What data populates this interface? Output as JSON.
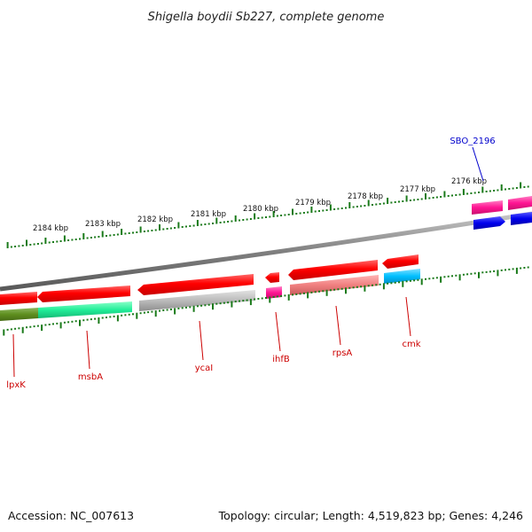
{
  "title": "Shigella boydii Sb227, complete genome",
  "footer": {
    "accession": "Accession: NC_007613",
    "summary": "Topology: circular; Length: 4,519,823 bp; Genes: 4,246"
  },
  "colors": {
    "gene_label_red": "#cc0000",
    "gene_label_blue": "#0000cc",
    "tick_green": "#1a7a1a",
    "backbone": "#808080"
  },
  "ruler_labels": [
    {
      "text": "2184 kbp"
    },
    {
      "text": "2183 kbp"
    },
    {
      "text": "2182 kbp"
    },
    {
      "text": "2181 kbp"
    },
    {
      "text": "2180 kbp"
    },
    {
      "text": "2179 kbp"
    },
    {
      "text": "2178 kbp"
    },
    {
      "text": "2177 kbp"
    },
    {
      "text": "2176 kbp"
    }
  ],
  "gene_labels": [
    {
      "name": "lpxK",
      "color": "#cc0000"
    },
    {
      "name": "msbA",
      "color": "#cc0000"
    },
    {
      "name": "ycaI",
      "color": "#cc0000"
    },
    {
      "name": "ihfB",
      "color": "#cc0000"
    },
    {
      "name": "rpsA",
      "color": "#cc0000"
    },
    {
      "name": "cmk",
      "color": "#cc0000"
    },
    {
      "name": "SBO_2196",
      "color": "#0000cc"
    }
  ],
  "features": [
    {
      "id": "lpxk-feature",
      "color": "#ff0000"
    },
    {
      "id": "lpxk-lower-feature",
      "color": "#5f8f1f"
    },
    {
      "id": "msba-feature",
      "color": "#ff0000"
    },
    {
      "id": "msba-lower-feature",
      "color": "#22ee99"
    },
    {
      "id": "ycai-feature",
      "color": "#ff0000"
    },
    {
      "id": "ycai-lower-feature",
      "color": "#bbbbbb"
    },
    {
      "id": "ihfb-feature",
      "color": "#ff0000"
    },
    {
      "id": "ihfb-lower-feature",
      "color": "#ff1493"
    },
    {
      "id": "rpsa-feature",
      "color": "#ff0000"
    },
    {
      "id": "rpsa-lower-feature",
      "color": "#f08080"
    },
    {
      "id": "cmk-feature",
      "color": "#ff0000"
    },
    {
      "id": "cmk-lower-feature",
      "color": "#00bfff"
    },
    {
      "id": "sbo2196-feature",
      "color": "#ff1493"
    },
    {
      "id": "sbo2196-lower-feature",
      "color": "#0000ee"
    },
    {
      "id": "right-edge-feature",
      "color": "#ff1493"
    },
    {
      "id": "right-edge-lower-feature",
      "color": "#0000ee"
    }
  ]
}
